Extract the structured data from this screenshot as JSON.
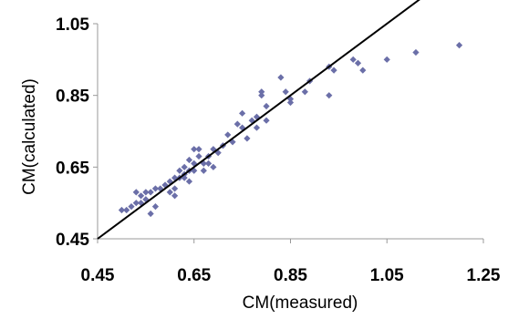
{
  "chart_data": {
    "type": "scatter",
    "title": "",
    "xlabel": "CM(measured)",
    "ylabel": "CM(calculated)",
    "xlim": [
      0.45,
      1.25
    ],
    "ylim": [
      0.45,
      1.05
    ],
    "xticks": [
      "0.45",
      "0.65",
      "0.85",
      "1.05",
      "1.25"
    ],
    "yticks": [
      "0.45",
      "0.65",
      "0.85",
      "1.05"
    ],
    "grid": false,
    "legend": "none",
    "marker_color": "#6b6fa8",
    "reference_line": {
      "from": [
        0.45,
        0.45
      ],
      "to": [
        1.25,
        1.25
      ],
      "color": "#000000"
    },
    "series": [
      {
        "points": [
          [
            0.5,
            0.53
          ],
          [
            0.51,
            0.53
          ],
          [
            0.52,
            0.54
          ],
          [
            0.53,
            0.58
          ],
          [
            0.53,
            0.55
          ],
          [
            0.54,
            0.57
          ],
          [
            0.54,
            0.55
          ],
          [
            0.55,
            0.56
          ],
          [
            0.55,
            0.58
          ],
          [
            0.56,
            0.52
          ],
          [
            0.56,
            0.58
          ],
          [
            0.57,
            0.54
          ],
          [
            0.57,
            0.59
          ],
          [
            0.58,
            0.59
          ],
          [
            0.59,
            0.6
          ],
          [
            0.6,
            0.61
          ],
          [
            0.6,
            0.58
          ],
          [
            0.61,
            0.62
          ],
          [
            0.61,
            0.59
          ],
          [
            0.61,
            0.57
          ],
          [
            0.62,
            0.64
          ],
          [
            0.62,
            0.62
          ],
          [
            0.63,
            0.63
          ],
          [
            0.63,
            0.65
          ],
          [
            0.63,
            0.62
          ],
          [
            0.64,
            0.64
          ],
          [
            0.64,
            0.61
          ],
          [
            0.64,
            0.67
          ],
          [
            0.65,
            0.7
          ],
          [
            0.65,
            0.66
          ],
          [
            0.65,
            0.64
          ],
          [
            0.66,
            0.7
          ],
          [
            0.66,
            0.68
          ],
          [
            0.67,
            0.66
          ],
          [
            0.67,
            0.64
          ],
          [
            0.68,
            0.68
          ],
          [
            0.68,
            0.66
          ],
          [
            0.69,
            0.65
          ],
          [
            0.69,
            0.7
          ],
          [
            0.7,
            0.69
          ],
          [
            0.71,
            0.71
          ],
          [
            0.72,
            0.74
          ],
          [
            0.73,
            0.72
          ],
          [
            0.74,
            0.77
          ],
          [
            0.75,
            0.76
          ],
          [
            0.75,
            0.8
          ],
          [
            0.76,
            0.73
          ],
          [
            0.77,
            0.78
          ],
          [
            0.78,
            0.76
          ],
          [
            0.78,
            0.79
          ],
          [
            0.79,
            0.86
          ],
          [
            0.79,
            0.85
          ],
          [
            0.8,
            0.78
          ],
          [
            0.8,
            0.82
          ],
          [
            0.83,
            0.9
          ],
          [
            0.84,
            0.86
          ],
          [
            0.85,
            0.84
          ],
          [
            0.85,
            0.83
          ],
          [
            0.88,
            0.86
          ],
          [
            0.89,
            0.89
          ],
          [
            0.93,
            0.93
          ],
          [
            0.93,
            0.85
          ],
          [
            0.94,
            0.92
          ],
          [
            0.98,
            0.95
          ],
          [
            0.99,
            0.94
          ],
          [
            1.0,
            0.92
          ],
          [
            1.05,
            0.95
          ],
          [
            1.11,
            0.97
          ],
          [
            1.2,
            0.99
          ]
        ]
      }
    ]
  }
}
